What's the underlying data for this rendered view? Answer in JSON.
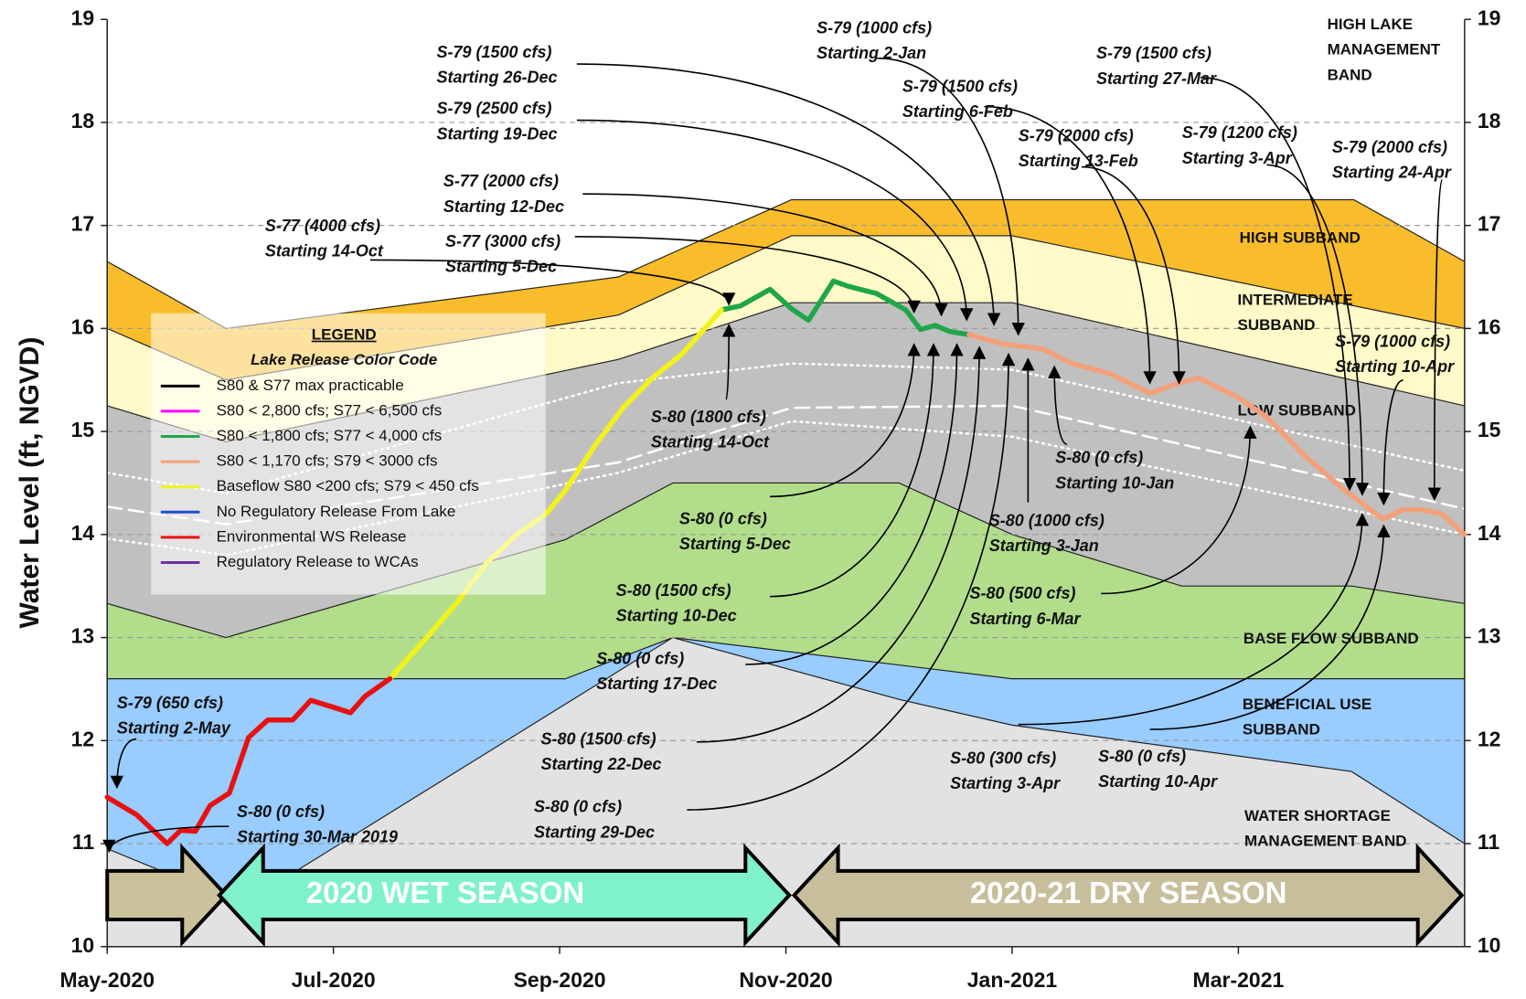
{
  "chart_data": {
    "type": "line",
    "y_label": "Water Level (ft, NGVD)",
    "xlim": [
      0,
      12
    ],
    "xticks": [
      {
        "value": 0,
        "label": "May-2020"
      },
      {
        "value": 2,
        "label": "Jul-2020"
      },
      {
        "value": 4,
        "label": "Sep-2020"
      },
      {
        "value": 6,
        "label": "Nov-2020"
      },
      {
        "value": 8,
        "label": "Jan-2021"
      },
      {
        "value": 10,
        "label": "Mar-2021"
      }
    ],
    "ylim": [
      10,
      19
    ],
    "yticks": [
      10,
      11,
      12,
      13,
      14,
      15,
      16,
      17,
      18,
      19
    ],
    "y2lim": [
      10,
      19
    ],
    "y2ticks": [
      10,
      11,
      12,
      13,
      14,
      15,
      16,
      17,
      18,
      19
    ],
    "grid": true,
    "legend": {
      "title": "LEGEND",
      "subtitle": "Lake Release Color Code"
    },
    "series": [
      {
        "name": "S80 & S77 max practicable",
        "color": "#000000",
        "x": [],
        "values": []
      },
      {
        "name": "S80 < 2,800 cfs; S77 < 6,500 cfs",
        "color": "#ff00ff",
        "x": [],
        "values": []
      },
      {
        "name": "S80 < 1,800 cfs; S77 < 4,000 cfs",
        "color": "#1fa64a",
        "x": [
          5.43,
          5.6,
          5.86,
          6.05,
          6.2,
          6.42,
          6.55,
          6.8,
          7.06,
          7.19,
          7.32,
          7.45,
          7.62
        ],
        "values": [
          16.18,
          16.22,
          16.38,
          16.19,
          16.08,
          16.46,
          16.41,
          16.34,
          16.18,
          15.99,
          16.03,
          15.97,
          15.94
        ]
      },
      {
        "name": "S80 < 1,170 cfs; S79 < 3000 cfs",
        "color": "#f4a07a",
        "x": [
          7.62,
          7.92,
          8.27,
          8.53,
          8.87,
          9.22,
          9.47,
          9.65,
          10.0,
          10.25,
          10.59,
          10.94,
          11.28,
          11.45,
          11.63,
          11.8,
          12.0
        ],
        "values": [
          15.94,
          15.85,
          15.8,
          15.66,
          15.56,
          15.37,
          15.47,
          15.52,
          15.33,
          15.14,
          14.76,
          14.43,
          14.15,
          14.24,
          14.24,
          14.2,
          14.0
        ]
      },
      {
        "name": "Baseflow S80 <200 cfs; S79 < 450 cfs",
        "color": "#f2f21a",
        "x": [
          2.5,
          2.84,
          3.1,
          3.36,
          3.62,
          3.88,
          4.05,
          4.31,
          4.56,
          4.82,
          5.08,
          5.43
        ],
        "values": [
          12.6,
          13.02,
          13.35,
          13.73,
          14.0,
          14.2,
          14.43,
          14.86,
          15.23,
          15.52,
          15.75,
          16.18
        ]
      },
      {
        "name": "No Regulatory Release From Lake",
        "color": "#1f4fd0",
        "x": [],
        "values": []
      },
      {
        "name": "Environmental WS Release",
        "color": "#e81010",
        "x": [
          0,
          0.26,
          0.53,
          0.65,
          0.78,
          0.91,
          1.08,
          1.25,
          1.42,
          1.64,
          1.8,
          1.98,
          2.15,
          2.28,
          2.5
        ],
        "values": [
          11.45,
          11.28,
          11.0,
          11.13,
          11.12,
          11.37,
          11.49,
          12.03,
          12.2,
          12.2,
          12.39,
          12.33,
          12.27,
          12.43,
          12.6
        ]
      },
      {
        "name": "Regulatory Release to WCAs",
        "color": "#7030a0",
        "x": [],
        "values": []
      }
    ],
    "top_label_lines": [
      "HIGH LAKE",
      "MANAGEMENT",
      "BAND"
    ],
    "bands": [
      {
        "label_lines": [
          "HIGH SUBBAND"
        ],
        "color": "#f9bd2b",
        "x": [
          0,
          1.05,
          4.52,
          6.05,
          11.02,
          12
        ],
        "values": [
          16.65,
          16.0,
          16.5,
          17.25,
          17.25,
          16.65
        ]
      },
      {
        "label_lines": [
          "INTERMEDIATE",
          "SUBBAND"
        ],
        "color": "#fffac8",
        "x": [
          0,
          1.05,
          4.52,
          6.05,
          8.0,
          12
        ],
        "values": [
          16.0,
          15.5,
          16.13,
          16.9,
          16.9,
          16.0
        ]
      },
      {
        "label_lines": [
          "LOW SUBBAND"
        ],
        "color": "#c0c0c0",
        "x": [
          0,
          1.05,
          4.52,
          6.05,
          8.0,
          12
        ],
        "values": [
          15.25,
          14.9,
          15.7,
          16.25,
          16.25,
          15.25
        ]
      },
      {
        "label_lines": [
          "BASE FLOW SUBBAND"
        ],
        "color": "#b2de8c",
        "x": [
          0,
          1.05,
          4.05,
          5.0,
          7.0,
          8.0,
          9.5,
          11.0,
          12
        ],
        "values": [
          13.33,
          13.0,
          13.95,
          14.5,
          14.5,
          14.0,
          13.5,
          13.5,
          13.33
        ]
      },
      {
        "label_lines": [
          "BENEFICIAL USE",
          "SUBBAND"
        ],
        "color": "#99ccff",
        "x": [
          0,
          4.05,
          5.0,
          8.0,
          12
        ],
        "values": [
          12.6,
          12.6,
          13.0,
          12.6,
          12.6
        ]
      },
      {
        "label_lines": [
          "WATER SHORTAGE",
          "MANAGEMENT BAND"
        ],
        "color": "#e2e2e2",
        "x": [
          0,
          1.0,
          1.4,
          5.0,
          7.0,
          8.0,
          11.0,
          12
        ],
        "values": [
          10.95,
          10.5,
          10.55,
          13.0,
          12.4,
          12.15,
          11.7,
          11.0
        ]
      }
    ],
    "reference_lines": [
      {
        "style": "dotted",
        "x": [
          0,
          1.05,
          4.52,
          6.05,
          8.0,
          12
        ],
        "values": [
          14.6,
          14.4,
          15.47,
          15.66,
          15.6,
          14.62
        ]
      },
      {
        "style": "dashed",
        "x": [
          0,
          1.05,
          4.52,
          6.05,
          8.0,
          12
        ],
        "values": [
          14.27,
          14.1,
          14.7,
          15.23,
          15.25,
          14.25
        ]
      },
      {
        "style": "dotted",
        "x": [
          0,
          1.05,
          4.52,
          6.05,
          8.0,
          12
        ],
        "values": [
          13.96,
          13.8,
          14.6,
          15.1,
          14.95,
          14.0
        ]
      }
    ],
    "seasons": [
      "2020 WET SEASON",
      "2020-21 DRY SEASON"
    ],
    "annotations": [
      {
        "lines": [
          "S-79 (1500 cfs)",
          "Starting 26-Dec"
        ]
      },
      {
        "lines": [
          "S-79 (2500 cfs)",
          "Starting 19-Dec"
        ]
      },
      {
        "lines": [
          "S-77 (2000 cfs)",
          "Starting 12-Dec"
        ]
      },
      {
        "lines": [
          "S-77 (3000 cfs)",
          "Starting 5-Dec"
        ]
      },
      {
        "lines": [
          "S-77 (4000 cfs)",
          "Starting 14-Oct"
        ]
      },
      {
        "lines": [
          "S-79 (1000 cfs)",
          "Starting 2-Jan"
        ]
      },
      {
        "lines": [
          "S-79 (1500 cfs)",
          "Starting 6-Feb"
        ]
      },
      {
        "lines": [
          "S-79 (1500 cfs)",
          "Starting 27-Mar"
        ]
      },
      {
        "lines": [
          "S-79 (2000 cfs)",
          "Starting 13-Feb"
        ]
      },
      {
        "lines": [
          "S-79 (1200 cfs)",
          "Starting 3-Apr"
        ]
      },
      {
        "lines": [
          "S-79 (2000 cfs)",
          "Starting 24-Apr"
        ]
      },
      {
        "lines": [
          "S-79 (1000 cfs)",
          "Starting 10-Apr"
        ]
      },
      {
        "lines": [
          "S-80 (1800 cfs)",
          "Starting 14-Oct"
        ]
      },
      {
        "lines": [
          "S-80 (0 cfs)",
          "Starting 10-Jan"
        ]
      },
      {
        "lines": [
          "S-80 (0 cfs)",
          "Starting 5-Dec"
        ]
      },
      {
        "lines": [
          "S-80 (1000 cfs)",
          "Starting 3-Jan"
        ]
      },
      {
        "lines": [
          "S-80 (1500 cfs)",
          "Starting 10-Dec"
        ]
      },
      {
        "lines": [
          "S-80 (500 cfs)",
          "Starting 6-Mar"
        ]
      },
      {
        "lines": [
          "S-80 (0 cfs)",
          "Starting 17-Dec"
        ]
      },
      {
        "lines": [
          "S-80 (1500 cfs)",
          "Starting 22-Dec"
        ]
      },
      {
        "lines": [
          "S-80 (0 cfs)",
          "Starting 29-Dec"
        ]
      },
      {
        "lines": [
          "S-80 (300 cfs)",
          "Starting 3-Apr"
        ]
      },
      {
        "lines": [
          "S-80 (0 cfs)",
          "Starting 10-Apr"
        ]
      },
      {
        "lines": [
          "S-79 (650 cfs)",
          "Starting 2-May"
        ]
      },
      {
        "lines": [
          "S-80 (0 cfs)",
          "Starting 30-Mar 2019"
        ]
      }
    ]
  }
}
